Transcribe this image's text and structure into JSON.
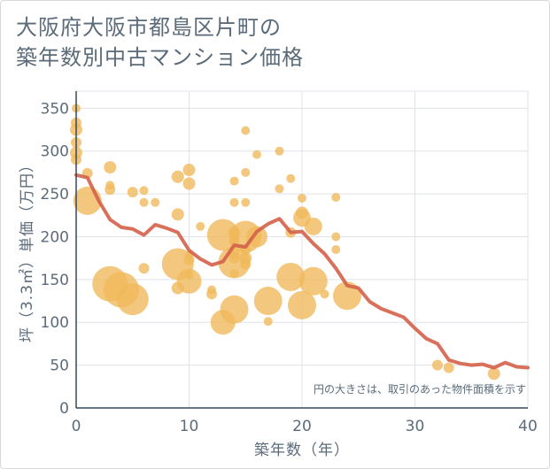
{
  "title_lines": [
    "大阪府大阪市都島区片町の",
    "築年数別中古マンション価格"
  ],
  "chart_data": {
    "type": "scatter",
    "xlabel": "築年数（年）",
    "ylabel": "坪（3.3㎡）単価（万円）",
    "xlim": [
      0,
      40
    ],
    "ylim": [
      0,
      370
    ],
    "xticks": [
      0,
      10,
      20,
      30,
      40
    ],
    "yticks": [
      0,
      50,
      100,
      150,
      200,
      250,
      300,
      350
    ],
    "grid": true,
    "note": "円の大きさは、取引のあった物件面積を示す",
    "colors": {
      "bubble": "#f0b85a",
      "line": "#d4604a",
      "grid": "#dfe3e8",
      "text": "#5b6b7a"
    },
    "bubbles": [
      {
        "x": 0,
        "y": 350,
        "size": 5
      },
      {
        "x": 0,
        "y": 333,
        "size": 6
      },
      {
        "x": 0,
        "y": 325,
        "size": 7
      },
      {
        "x": 0,
        "y": 310,
        "size": 6
      },
      {
        "x": 0,
        "y": 298,
        "size": 7
      },
      {
        "x": 0,
        "y": 290,
        "size": 6
      },
      {
        "x": 1,
        "y": 274,
        "size": 6
      },
      {
        "x": 1,
        "y": 242,
        "size": 16
      },
      {
        "x": 3,
        "y": 281,
        "size": 7
      },
      {
        "x": 3,
        "y": 260,
        "size": 5
      },
      {
        "x": 3,
        "y": 255,
        "size": 6
      },
      {
        "x": 3,
        "y": 145,
        "size": 20
      },
      {
        "x": 4,
        "y": 138,
        "size": 20
      },
      {
        "x": 5,
        "y": 127,
        "size": 18
      },
      {
        "x": 5,
        "y": 252,
        "size": 6
      },
      {
        "x": 6,
        "y": 254,
        "size": 5
      },
      {
        "x": 6,
        "y": 240,
        "size": 5
      },
      {
        "x": 6,
        "y": 163,
        "size": 6
      },
      {
        "x": 7,
        "y": 240,
        "size": 5
      },
      {
        "x": 9,
        "y": 270,
        "size": 7
      },
      {
        "x": 9,
        "y": 226,
        "size": 7
      },
      {
        "x": 9,
        "y": 168,
        "size": 18
      },
      {
        "x": 9,
        "y": 140,
        "size": 7
      },
      {
        "x": 10,
        "y": 278,
        "size": 7
      },
      {
        "x": 10,
        "y": 262,
        "size": 7
      },
      {
        "x": 10,
        "y": 178,
        "size": 5
      },
      {
        "x": 10,
        "y": 173,
        "size": 6
      },
      {
        "x": 10,
        "y": 155,
        "size": 5
      },
      {
        "x": 10,
        "y": 148,
        "size": 14
      },
      {
        "x": 11,
        "y": 212,
        "size": 5
      },
      {
        "x": 12,
        "y": 138,
        "size": 5
      },
      {
        "x": 12,
        "y": 133,
        "size": 6
      },
      {
        "x": 13,
        "y": 202,
        "size": 18
      },
      {
        "x": 13,
        "y": 100,
        "size": 14
      },
      {
        "x": 14,
        "y": 265,
        "size": 5
      },
      {
        "x": 14,
        "y": 240,
        "size": 5
      },
      {
        "x": 14,
        "y": 205,
        "size": 7
      },
      {
        "x": 14,
        "y": 195,
        "size": 6
      },
      {
        "x": 14,
        "y": 180,
        "size": 6
      },
      {
        "x": 14,
        "y": 175,
        "size": 6
      },
      {
        "x": 14,
        "y": 170,
        "size": 18
      },
      {
        "x": 14,
        "y": 157,
        "size": 5
      },
      {
        "x": 14,
        "y": 115,
        "size": 16
      },
      {
        "x": 15,
        "y": 324,
        "size": 5
      },
      {
        "x": 15,
        "y": 275,
        "size": 5
      },
      {
        "x": 15,
        "y": 240,
        "size": 5
      },
      {
        "x": 15,
        "y": 200,
        "size": 18
      },
      {
        "x": 15,
        "y": 185,
        "size": 6
      },
      {
        "x": 15,
        "y": 175,
        "size": 7
      },
      {
        "x": 15,
        "y": 168,
        "size": 6
      },
      {
        "x": 16,
        "y": 296,
        "size": 5
      },
      {
        "x": 16,
        "y": 200,
        "size": 12
      },
      {
        "x": 17,
        "y": 125,
        "size": 16
      },
      {
        "x": 17,
        "y": 101,
        "size": 5
      },
      {
        "x": 18,
        "y": 300,
        "size": 5
      },
      {
        "x": 18,
        "y": 256,
        "size": 5
      },
      {
        "x": 19,
        "y": 268,
        "size": 5
      },
      {
        "x": 19,
        "y": 205,
        "size": 6
      },
      {
        "x": 19,
        "y": 153,
        "size": 16
      },
      {
        "x": 20,
        "y": 245,
        "size": 5
      },
      {
        "x": 20,
        "y": 228,
        "size": 7
      },
      {
        "x": 20,
        "y": 222,
        "size": 10
      },
      {
        "x": 20,
        "y": 120,
        "size": 16
      },
      {
        "x": 21,
        "y": 212,
        "size": 10
      },
      {
        "x": 21,
        "y": 148,
        "size": 16
      },
      {
        "x": 22,
        "y": 133,
        "size": 5
      },
      {
        "x": 23,
        "y": 246,
        "size": 5
      },
      {
        "x": 23,
        "y": 200,
        "size": 5
      },
      {
        "x": 23,
        "y": 185,
        "size": 5
      },
      {
        "x": 24,
        "y": 131,
        "size": 16
      },
      {
        "x": 32,
        "y": 50,
        "size": 6
      },
      {
        "x": 33,
        "y": 47,
        "size": 6
      },
      {
        "x": 37,
        "y": 40,
        "size": 7
      }
    ],
    "line": {
      "x": [
        0,
        1,
        2,
        3,
        4,
        5,
        6,
        7,
        8,
        9,
        10,
        11,
        12,
        13,
        14,
        15,
        16,
        17,
        18,
        19,
        20,
        21,
        22,
        23,
        24,
        25,
        26,
        27,
        28,
        29,
        30,
        31,
        32,
        33,
        34,
        35,
        36,
        37,
        38,
        39,
        40
      ],
      "y": [
        272,
        269,
        242,
        220,
        211,
        209,
        202,
        214,
        210,
        205,
        184,
        174,
        167,
        171,
        190,
        188,
        206,
        215,
        221,
        205,
        206,
        192,
        180,
        163,
        143,
        140,
        124,
        116,
        111,
        106,
        93,
        81,
        75,
        56,
        52,
        50,
        51,
        47,
        53,
        48,
        47
      ]
    }
  }
}
